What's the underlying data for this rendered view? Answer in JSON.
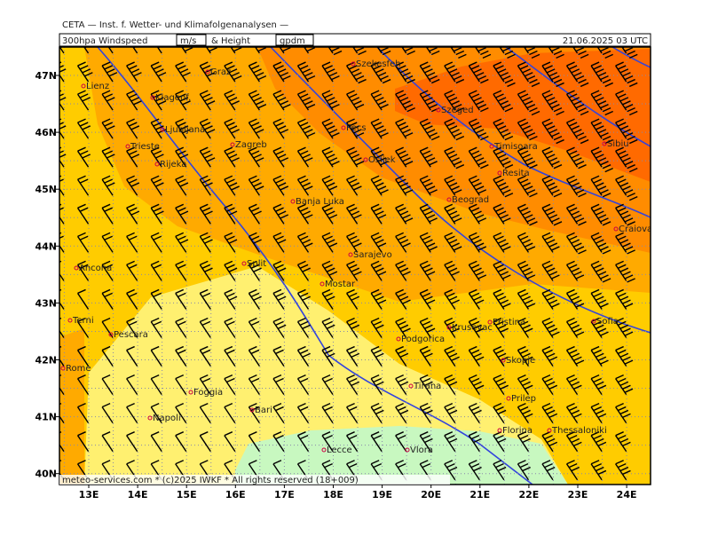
{
  "header": {
    "institute": "CETA — Inst. f. Wetter- und Klimafolgenanalysen —",
    "parameter": "300hpa Windspeed",
    "unit1": "m/s",
    "join": "& Height",
    "unit2": "gpdm",
    "valid": "21.06.2025 03 UTC"
  },
  "footer": "meteo-services.com * (c)2025 IWKF * All rights reserved (18+009)",
  "lat_labels": [
    "47N",
    "46N",
    "45N",
    "44N",
    "43N",
    "42N",
    "41N",
    "40N"
  ],
  "lon_labels": [
    "13E",
    "14E",
    "15E",
    "16E",
    "17E",
    "18E",
    "19E",
    "20E",
    "21E",
    "22E",
    "23E",
    "24E"
  ],
  "cities": [
    "Graz",
    "Szekesfeh",
    "Lienz",
    "Klagenf.",
    "Ljubljana",
    "Zagreb",
    "Pecs",
    "Szeged",
    "Timisoara",
    "Sibiu",
    "Trieste",
    "Rijeka",
    "Osijek",
    "Resita",
    "Banja Luka",
    "Beograd",
    "Craiova",
    "Ancona",
    "Split",
    "Sarajevo",
    "Mostar",
    "Terni",
    "Pescara",
    "Krusevac",
    "Pristina",
    "Sofia",
    "Podgorica",
    "Skopje",
    "Rome",
    "Tirana",
    "Foggia",
    "Bari",
    "Prilep",
    "Napoli",
    "Florina",
    "Thessaloniki",
    "Vlora",
    "Lecce"
  ]
}
